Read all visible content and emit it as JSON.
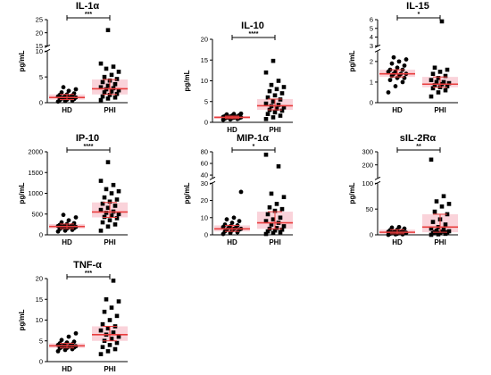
{
  "colors": {
    "mean_line": "#e83c3c",
    "sem_band": "#f7b6c2",
    "markers": "#000000"
  },
  "marker_shapes": {
    "HD": "circle",
    "PHI": "square"
  },
  "chart_data": [
    {
      "type": "scatter",
      "title": "IL-1α",
      "ylabel": "pg/mL",
      "categories": [
        "HD",
        "PHI"
      ],
      "axis_break": true,
      "ylim_lower": [
        0,
        10
      ],
      "ylim_upper": [
        15,
        25
      ],
      "yticks_lower": [
        "0",
        "5",
        "10"
      ],
      "yticks_upper": [
        "15",
        "20",
        "25"
      ],
      "significance": "***",
      "series": [
        {
          "name": "HD",
          "center": 1.0,
          "spread": [
            0.6,
            1.6
          ],
          "values": [
            0.2,
            0.3,
            0.4,
            0.5,
            0.6,
            0.7,
            0.8,
            0.9,
            1.0,
            1.0,
            1.1,
            1.2,
            1.3,
            1.4,
            1.5,
            1.6,
            1.8,
            2.0,
            2.3,
            2.6,
            3.0
          ]
        },
        {
          "name": "PHI",
          "center": 2.7,
          "spread": [
            1.6,
            4.5
          ],
          "values": [
            0.5,
            0.8,
            1.0,
            1.2,
            1.5,
            1.7,
            2.0,
            2.2,
            2.4,
            2.6,
            2.8,
            3.0,
            3.3,
            3.6,
            4.0,
            4.3,
            4.6,
            5.0,
            5.4,
            6.0,
            6.6,
            7.0,
            7.6,
            21.0
          ]
        }
      ]
    },
    {
      "type": "scatter",
      "title": "IL-10",
      "ylabel": "pg/mL",
      "categories": [
        "HD",
        "PHI"
      ],
      "axis_break": false,
      "ylim": [
        0,
        20
      ],
      "yticks": [
        "0",
        "5",
        "10",
        "15",
        "20"
      ],
      "significance": "****",
      "series": [
        {
          "name": "HD",
          "center": 1.2,
          "spread": [
            0.9,
            1.5
          ],
          "values": [
            0.6,
            0.7,
            0.8,
            0.9,
            1.0,
            1.0,
            1.1,
            1.1,
            1.2,
            1.2,
            1.3,
            1.3,
            1.4,
            1.4,
            1.5,
            1.6,
            1.7,
            1.9,
            2.0,
            2.1
          ]
        },
        {
          "name": "PHI",
          "center": 4.0,
          "spread": [
            3.0,
            5.6
          ],
          "values": [
            0.8,
            1.2,
            1.6,
            2.0,
            2.4,
            2.8,
            3.0,
            3.3,
            3.6,
            3.9,
            4.2,
            4.5,
            5.0,
            5.5,
            6.0,
            6.5,
            7.0,
            7.5,
            8.0,
            8.5,
            9.0,
            10.0,
            12.0,
            14.8
          ]
        }
      ]
    },
    {
      "type": "scatter",
      "title": "IL-15",
      "ylabel": "pg/mL",
      "categories": [
        "HD",
        "PHI"
      ],
      "axis_break": true,
      "ylim_lower": [
        0,
        2.5
      ],
      "ylim_upper": [
        3,
        6
      ],
      "yticks_lower": [
        "0",
        "1",
        "2"
      ],
      "yticks_upper": [
        "3",
        "4",
        "5",
        "6"
      ],
      "significance": "*",
      "series": [
        {
          "name": "HD",
          "center": 1.4,
          "spread": [
            1.25,
            1.6
          ],
          "values": [
            0.5,
            0.8,
            1.0,
            1.1,
            1.2,
            1.2,
            1.3,
            1.3,
            1.4,
            1.4,
            1.4,
            1.5,
            1.5,
            1.6,
            1.6,
            1.7,
            1.8,
            1.9,
            2.0,
            2.1,
            2.2
          ]
        },
        {
          "name": "PHI",
          "center": 0.9,
          "spread": [
            0.75,
            1.25
          ],
          "values": [
            0.3,
            0.5,
            0.6,
            0.7,
            0.75,
            0.8,
            0.85,
            0.9,
            0.95,
            1.0,
            1.0,
            1.1,
            1.2,
            1.3,
            1.4,
            1.5,
            1.6,
            1.7,
            5.8
          ]
        }
      ]
    },
    {
      "type": "scatter",
      "title": "IP-10",
      "ylabel": "pg/mL",
      "categories": [
        "HD",
        "PHI"
      ],
      "axis_break": false,
      "ylim": [
        0,
        2000
      ],
      "yticks": [
        "0",
        "500",
        "1000",
        "1500",
        "2000"
      ],
      "significance": "****",
      "series": [
        {
          "name": "HD",
          "center": 200,
          "spread": [
            150,
            260
          ],
          "values": [
            80,
            100,
            120,
            140,
            150,
            160,
            170,
            180,
            190,
            200,
            200,
            210,
            220,
            230,
            240,
            260,
            280,
            300,
            350,
            420,
            480
          ]
        },
        {
          "name": "PHI",
          "center": 550,
          "spread": [
            420,
            780
          ],
          "values": [
            100,
            200,
            250,
            300,
            350,
            400,
            430,
            460,
            500,
            530,
            560,
            600,
            650,
            700,
            750,
            800,
            850,
            900,
            1000,
            1050,
            1100,
            1200,
            1300,
            1750
          ]
        }
      ]
    },
    {
      "type": "scatter",
      "title": "MIP-1α",
      "ylabel": "pg/mL",
      "categories": [
        "HD",
        "PHI"
      ],
      "axis_break": true,
      "ylim_lower": [
        0,
        30
      ],
      "ylim_upper": [
        35,
        80
      ],
      "yticks_lower": [
        "0",
        "10",
        "20",
        "30"
      ],
      "yticks_upper": [
        "40",
        "60",
        "80"
      ],
      "significance": "*",
      "series": [
        {
          "name": "HD",
          "center": 3.5,
          "spread": [
            2.0,
            5.5
          ],
          "values": [
            0.5,
            1.0,
            1.5,
            2.0,
            2.5,
            3.0,
            3.0,
            3.5,
            3.5,
            4.0,
            4.0,
            4.5,
            5.0,
            5.5,
            6.0,
            7.0,
            8.0,
            9.0,
            10.0,
            25.0
          ]
        },
        {
          "name": "PHI",
          "center": 7.0,
          "spread": [
            3.5,
            13.5
          ],
          "values": [
            0.5,
            1.0,
            1.5,
            2.0,
            2.5,
            3.0,
            3.5,
            4.0,
            5.0,
            6.0,
            7.0,
            8.0,
            9.0,
            10.0,
            12.0,
            14.0,
            15.0,
            16.0,
            18.0,
            22.0,
            24.0,
            55.0,
            75.0
          ]
        }
      ]
    },
    {
      "type": "scatter",
      "title": "sIL-2Rα",
      "ylabel": "pg/mL",
      "categories": [
        "HD",
        "PHI"
      ],
      "axis_break": true,
      "ylim_lower": [
        0,
        100
      ],
      "ylim_upper": [
        100,
        300
      ],
      "yticks_lower": [
        "0",
        "50",
        "100"
      ],
      "yticks_upper": [
        "200",
        "300"
      ],
      "significance": "**",
      "series": [
        {
          "name": "HD",
          "center": 5,
          "spread": [
            2,
            10
          ],
          "values": [
            0,
            1,
            1,
            2,
            2,
            3,
            3,
            4,
            4,
            5,
            5,
            6,
            7,
            8,
            9,
            10,
            12,
            14,
            15
          ]
        },
        {
          "name": "PHI",
          "center": 15,
          "spread": [
            5,
            40
          ],
          "values": [
            0,
            1,
            2,
            3,
            4,
            5,
            5,
            6,
            7,
            8,
            10,
            12,
            15,
            20,
            25,
            30,
            40,
            45,
            55,
            60,
            65,
            75,
            240
          ]
        }
      ]
    },
    {
      "type": "scatter",
      "title": "TNF-α",
      "ylabel": "pg/mL",
      "categories": [
        "HD",
        "PHI"
      ],
      "axis_break": false,
      "ylim": [
        0,
        20
      ],
      "yticks": [
        "0",
        "5",
        "10",
        "15",
        "20"
      ],
      "significance": "***",
      "series": [
        {
          "name": "HD",
          "center": 3.8,
          "spread": [
            3.3,
            4.4
          ],
          "values": [
            2.5,
            2.8,
            3.0,
            3.2,
            3.3,
            3.4,
            3.5,
            3.6,
            3.7,
            3.8,
            3.9,
            4.0,
            4.1,
            4.2,
            4.4,
            4.6,
            4.8,
            5.2,
            6.0,
            6.8
          ]
        },
        {
          "name": "PHI",
          "center": 6.5,
          "spread": [
            5.0,
            8.5
          ],
          "values": [
            1.8,
            2.5,
            3.0,
            3.5,
            4.0,
            4.5,
            5.0,
            5.5,
            6.0,
            6.5,
            7.0,
            7.5,
            8.0,
            8.5,
            9.0,
            10.0,
            11.0,
            12.0,
            13.0,
            14.5,
            15.0,
            19.5
          ]
        }
      ]
    }
  ]
}
